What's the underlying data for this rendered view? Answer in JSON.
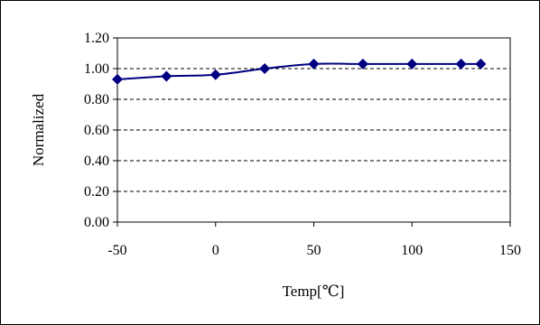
{
  "chart_data": {
    "type": "line",
    "xlabel": "Temp[℃]",
    "ylabel": "Normalized",
    "xlim": [
      -50,
      150
    ],
    "ylim": [
      0.0,
      1.2
    ],
    "x_ticks": [
      "-50",
      "0",
      "50",
      "100",
      "150"
    ],
    "y_ticks": [
      "0.00",
      "0.20",
      "0.40",
      "0.60",
      "0.80",
      "1.00",
      "1.20"
    ],
    "grid": "horizontal-dashed",
    "series": [
      {
        "color": "#000080",
        "marker": "diamond",
        "x": [
          -50,
          -25,
          0,
          25,
          50,
          75,
          100,
          125,
          135
        ],
        "y": [
          0.93,
          0.95,
          0.96,
          1.0,
          1.03,
          1.03,
          1.03,
          1.03,
          1.03
        ]
      }
    ]
  }
}
